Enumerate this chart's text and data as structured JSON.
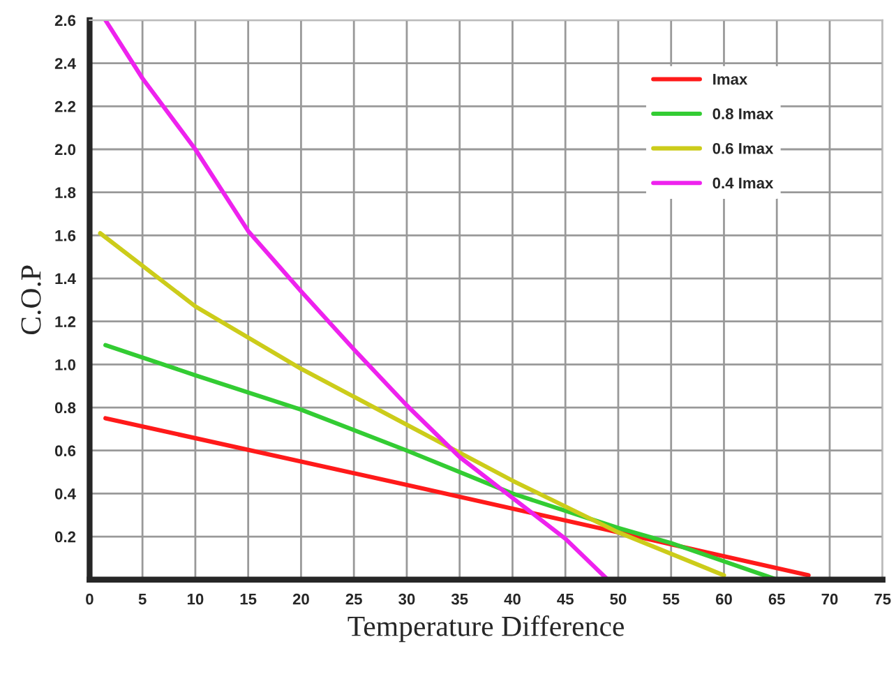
{
  "chart_data": {
    "type": "line",
    "xlabel": "Temperature Difference",
    "ylabel": "C.O.P",
    "xlim": [
      0,
      75
    ],
    "xticks": [
      0,
      5,
      10,
      15,
      20,
      25,
      30,
      35,
      40,
      45,
      50,
      55,
      60,
      65,
      70,
      75
    ],
    "ylim": [
      0,
      2.6
    ],
    "yticks": [
      0.2,
      0.4,
      0.6,
      0.8,
      {
        "value": 1.0,
        "label": "1.0"
      },
      1.2,
      1.4,
      1.6,
      1.8,
      {
        "value": 2.0,
        "label": "2.0"
      },
      2.2,
      2.4,
      2.6
    ],
    "grid": true,
    "legend": "top right",
    "marker": "none",
    "line_style": "solid",
    "series": [
      {
        "name": "Imax",
        "color": "#ff1a1a",
        "x": [
          1.5,
          30,
          50,
          68
        ],
        "values": [
          0.75,
          0.44,
          0.22,
          0.02
        ]
      },
      {
        "name": "0.8 Imax",
        "color": "#33cc33",
        "x": [
          1.5,
          10,
          20,
          30,
          40,
          50,
          55,
          65
        ],
        "values": [
          1.09,
          0.95,
          0.79,
          0.6,
          0.4,
          0.24,
          0.17,
          0.0
        ]
      },
      {
        "name": "0.6 Imax",
        "color": "#cccc1a",
        "x": [
          1,
          10,
          20,
          30,
          40,
          50,
          60
        ],
        "values": [
          1.61,
          1.27,
          0.98,
          0.72,
          0.46,
          0.22,
          0.02
        ]
      },
      {
        "name": "0.4 Imax",
        "color": "#ee22ee",
        "x": [
          1.5,
          5,
          10,
          15,
          20,
          25,
          30,
          35,
          40,
          45,
          49
        ],
        "values": [
          2.6,
          2.33,
          2.0,
          1.62,
          1.34,
          1.07,
          0.81,
          0.57,
          0.38,
          0.19,
          0.0
        ]
      }
    ]
  }
}
